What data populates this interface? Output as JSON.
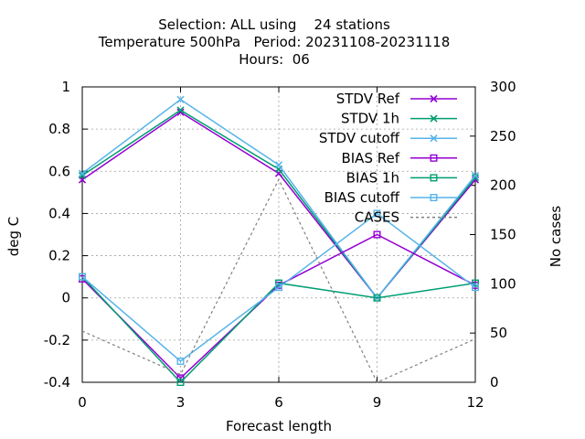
{
  "chart_data": {
    "type": "line",
    "title_lines": [
      "Selection: ALL using    24 stations",
      "Temperature 500hPa   Period: 20231108-20231118",
      "Hours:  06"
    ],
    "xlabel": "Forecast length",
    "ylabel": "deg C",
    "y2label": "No cases",
    "x": [
      0,
      3,
      6,
      9,
      12
    ],
    "xlim": [
      0,
      12
    ],
    "ylim": [
      -0.4,
      1.0
    ],
    "y2lim": [
      0,
      300
    ],
    "xticks": [
      "0",
      "3",
      "6",
      "9",
      "12"
    ],
    "yticks": [
      "-0.4",
      "-0.2",
      "0",
      "0.2",
      "0.4",
      "0.6",
      "0.8",
      "1"
    ],
    "y2ticks": [
      "0",
      "50",
      "100",
      "150",
      "200",
      "250",
      "300"
    ],
    "grid": true,
    "legend_position": "top-right",
    "series": [
      {
        "name": "STDV Ref",
        "marker": "x",
        "axis": "y1",
        "color": "#9400d3",
        "dash": "",
        "values": [
          0.56,
          0.88,
          0.59,
          0.0,
          0.56
        ]
      },
      {
        "name": "STDV 1h",
        "marker": "x",
        "axis": "y1",
        "color": "#009e73",
        "dash": "",
        "values": [
          0.58,
          0.89,
          0.61,
          0.0,
          0.57
        ]
      },
      {
        "name": "STDV cutoff",
        "marker": "x",
        "axis": "y1",
        "color": "#56b4e9",
        "dash": "",
        "values": [
          0.59,
          0.94,
          0.63,
          0.0,
          0.58
        ]
      },
      {
        "name": "BIAS Ref",
        "marker": "square",
        "axis": "y1",
        "color": "#9400d3",
        "dash": "",
        "values": [
          0.09,
          -0.38,
          0.06,
          0.3,
          0.06
        ]
      },
      {
        "name": "BIAS 1h",
        "marker": "square",
        "axis": "y1",
        "color": "#009e73",
        "dash": "",
        "values": [
          0.1,
          -0.4,
          0.07,
          0.0,
          0.07
        ]
      },
      {
        "name": "BIAS cutoff",
        "marker": "square",
        "axis": "y1",
        "color": "#56b4e9",
        "dash": "",
        "values": [
          0.1,
          -0.3,
          0.05,
          0.4,
          0.05
        ]
      },
      {
        "name": "CASES",
        "marker": "none",
        "axis": "y2",
        "color": "#808080",
        "dash": "3,3",
        "values": [
          52,
          8,
          206,
          0,
          44
        ]
      }
    ]
  }
}
